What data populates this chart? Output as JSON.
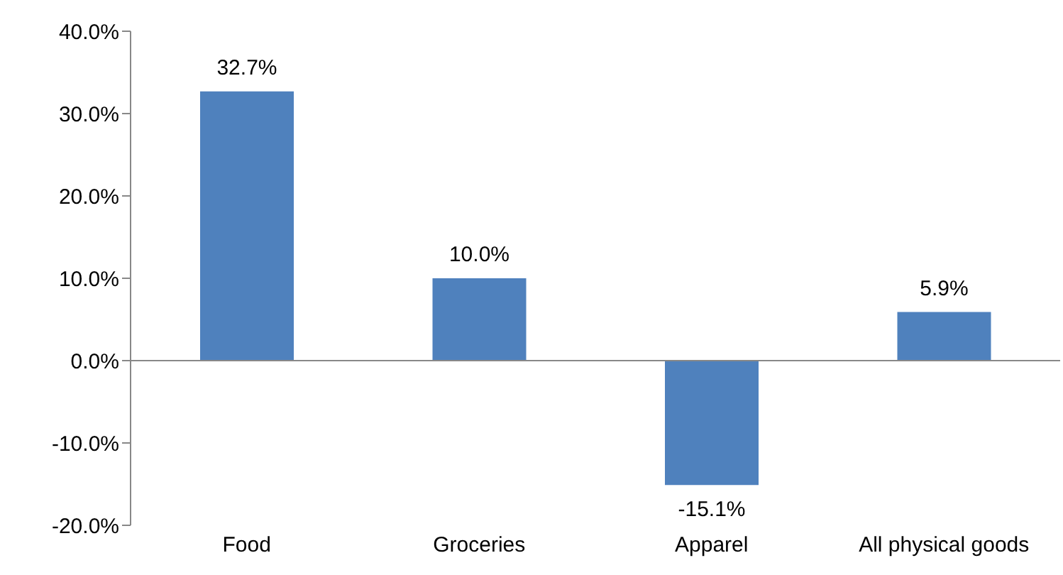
{
  "chart_data": {
    "type": "bar",
    "categories": [
      "Food",
      "Groceries",
      "Apparel",
      "All physical goods"
    ],
    "values": [
      32.7,
      10.0,
      -15.1,
      5.9
    ],
    "color": "#4f81bd",
    "value_labels": [
      "32.7%",
      "10.0%",
      "-15.1%",
      "5.9%"
    ],
    "ylim": [
      -20,
      40
    ],
    "yticks": [
      {
        "value": -20,
        "label": "-20.0%"
      },
      {
        "value": -10,
        "label": "-10.0%"
      },
      {
        "value": 0,
        "label": "0.0%"
      },
      {
        "value": 10,
        "label": "10.0%"
      },
      {
        "value": 20,
        "label": "20.0%"
      },
      {
        "value": 30,
        "label": "30.0%"
      },
      {
        "value": 40,
        "label": "40.0%"
      }
    ],
    "ref_lines": [
      {
        "axis": "y",
        "value": 0,
        "color": "#888888"
      }
    ]
  }
}
